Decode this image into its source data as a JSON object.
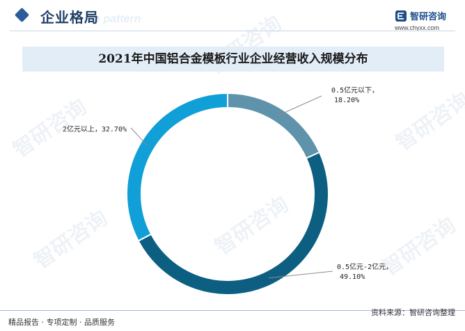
{
  "header": {
    "section_title": "企业格局",
    "section_bg_text": "e pattern",
    "logo_name": "智研咨询",
    "logo_url": "www.chyxx.com"
  },
  "chart_data": {
    "type": "pie",
    "title": "2021年中国铝合金模板行业企业经营收入规模分布",
    "donut": true,
    "slices": [
      {
        "label": "0.5亿元以下",
        "value": 18.2,
        "value_text": "18.20%",
        "color": "#5f93ab"
      },
      {
        "label": "0.5亿元-2亿元",
        "value": 49.1,
        "value_text": "49.10%",
        "color": "#0d5f82"
      },
      {
        "label": "2亿元以上",
        "value": 32.7,
        "value_text": "32.70%",
        "color": "#109fd6"
      }
    ]
  },
  "footer": {
    "left_text": "精品报告 · 专项定制 · 品质服务",
    "right_text": "资料来源：智研咨询整理"
  },
  "watermark_text": "智研咨询"
}
